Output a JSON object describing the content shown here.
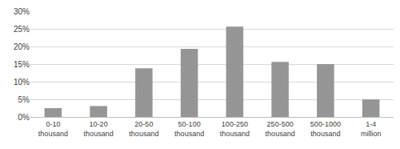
{
  "chart_data": {
    "type": "bar",
    "categories": [
      "0-10 thousand",
      "10-20 thousand",
      "20-50 thousand",
      "50-100 thousand",
      "100-250 thousand",
      "250-500 thousand",
      "500-1000 thousand",
      "1-4 million"
    ],
    "values": [
      2.5,
      3.1,
      13.8,
      19.3,
      25.6,
      15.6,
      15.0,
      5.0
    ],
    "color": "#9a9a9a",
    "ylim": [
      0,
      30
    ],
    "yticks": [
      {
        "value": 0,
        "label": "0%"
      },
      {
        "value": 5,
        "label": "5%"
      },
      {
        "value": 10,
        "label": "10%"
      },
      {
        "value": 15,
        "label": "15%"
      },
      {
        "value": 20,
        "label": "20%"
      },
      {
        "value": 25,
        "label": "25%"
      },
      {
        "value": 30,
        "label": "30%"
      }
    ],
    "grid": true
  }
}
